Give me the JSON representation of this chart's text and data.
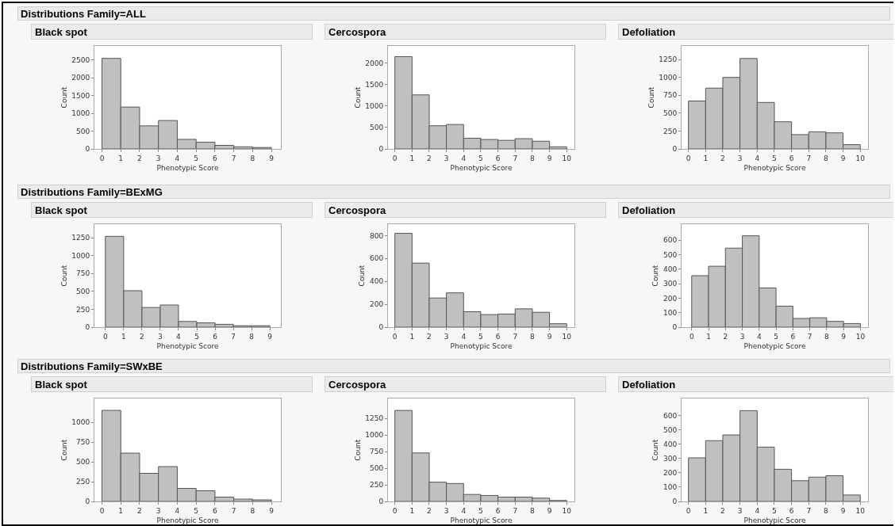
{
  "chart_data": [
    {
      "type": "other",
      "title": "Distributions Family=ALL"
    },
    {
      "type": "histogram",
      "title": "Black spot",
      "xlabel": "Phenotypic Score",
      "ylabel": "Count",
      "color": "#c0c0c0",
      "grid": false,
      "bins": [
        0,
        1,
        2,
        3,
        4,
        5,
        6,
        7,
        8,
        9
      ],
      "values": [
        2550,
        1180,
        650,
        800,
        270,
        190,
        100,
        60,
        40
      ],
      "xlim": [
        -0.4,
        9.5
      ],
      "xticks": [
        0,
        1,
        2,
        3,
        4,
        5,
        6,
        7,
        8,
        9
      ],
      "ylim": [
        0,
        2900
      ],
      "yticks": [
        0,
        500,
        1000,
        1500,
        2000,
        2500
      ]
    },
    {
      "type": "histogram",
      "title": "Cercospora",
      "xlabel": "Phenotypic Score",
      "ylabel": "Count",
      "color": "#c0c0c0",
      "grid": false,
      "bins": [
        0,
        1,
        2,
        3,
        4,
        5,
        6,
        7,
        8,
        9,
        10
      ],
      "values": [
        2150,
        1260,
        540,
        570,
        250,
        220,
        200,
        240,
        180,
        50
      ],
      "xlim": [
        -0.4,
        10.45
      ],
      "xticks": [
        0,
        1,
        2,
        3,
        4,
        5,
        6,
        7,
        8,
        9,
        10
      ],
      "ylim": [
        0,
        2400
      ],
      "yticks": [
        0,
        500,
        1000,
        1500,
        2000
      ]
    },
    {
      "type": "histogram",
      "title": "Defoliation",
      "xlabel": "Phenotypic Score",
      "ylabel": "Count",
      "color": "#c0c0c0",
      "grid": false,
      "bins": [
        0,
        1,
        2,
        3,
        4,
        5,
        6,
        7,
        8,
        9,
        10
      ],
      "values": [
        670,
        850,
        1000,
        1265,
        650,
        380,
        200,
        240,
        225,
        60
      ],
      "xlim": [
        -0.4,
        10.45
      ],
      "xticks": [
        0,
        1,
        2,
        3,
        4,
        5,
        6,
        7,
        8,
        9,
        10
      ],
      "ylim": [
        0,
        1440
      ],
      "yticks": [
        0,
        250,
        500,
        750,
        1000,
        1250
      ]
    },
    {
      "type": "other",
      "title": "Distributions Family=BExMG"
    },
    {
      "type": "histogram",
      "title": "Black spot",
      "xlabel": "Phenotypic Score",
      "ylabel": "Count",
      "color": "#c0c0c0",
      "grid": false,
      "bins": [
        0,
        1,
        2,
        3,
        4,
        5,
        6,
        7,
        8,
        9
      ],
      "values": [
        1270,
        510,
        275,
        310,
        80,
        60,
        40,
        20,
        20
      ],
      "xlim": [
        -0.6,
        9.6
      ],
      "xticks": [
        0,
        1,
        2,
        3,
        4,
        5,
        6,
        7,
        8,
        9
      ],
      "ylim": [
        0,
        1440
      ],
      "yticks": [
        0,
        250,
        500,
        750,
        1000,
        1250
      ]
    },
    {
      "type": "histogram",
      "title": "Cercospora",
      "xlabel": "Phenotypic Score",
      "ylabel": "Count",
      "color": "#c0c0c0",
      "grid": false,
      "bins": [
        0,
        1,
        2,
        3,
        4,
        5,
        6,
        7,
        8,
        9,
        10
      ],
      "values": [
        820,
        560,
        255,
        300,
        135,
        110,
        115,
        160,
        130,
        30
      ],
      "xlim": [
        -0.4,
        10.45
      ],
      "xticks": [
        0,
        1,
        2,
        3,
        4,
        5,
        6,
        7,
        8,
        9,
        10
      ],
      "ylim": [
        0,
        900
      ],
      "yticks": [
        0,
        200,
        400,
        600,
        800
      ]
    },
    {
      "type": "histogram",
      "title": "Defoliation",
      "xlabel": "Phenotypic Score",
      "ylabel": "Count",
      "color": "#c0c0c0",
      "grid": false,
      "bins": [
        0,
        1,
        2,
        3,
        4,
        5,
        6,
        7,
        8,
        9,
        10
      ],
      "values": [
        355,
        420,
        545,
        630,
        270,
        145,
        60,
        65,
        40,
        25
      ],
      "xlim": [
        -0.6,
        10.45
      ],
      "xticks": [
        0,
        1,
        2,
        3,
        4,
        5,
        6,
        7,
        8,
        9,
        10
      ],
      "ylim": [
        0,
        710
      ],
      "yticks": [
        0,
        100,
        200,
        300,
        400,
        500,
        600
      ]
    },
    {
      "type": "other",
      "title": "Distributions Family=SWxBE"
    },
    {
      "type": "histogram",
      "title": "Black spot",
      "xlabel": "Phenotypic Score",
      "ylabel": "Count",
      "color": "#c0c0c0",
      "grid": false,
      "bins": [
        0,
        1,
        2,
        3,
        4,
        5,
        6,
        7,
        8,
        9
      ],
      "values": [
        1150,
        610,
        355,
        440,
        165,
        135,
        55,
        30,
        20
      ],
      "xlim": [
        -0.4,
        9.5
      ],
      "xticks": [
        0,
        1,
        2,
        3,
        4,
        5,
        6,
        7,
        8,
        9
      ],
      "ylim": [
        0,
        1300
      ],
      "yticks": [
        0,
        250,
        500,
        750,
        1000
      ]
    },
    {
      "type": "histogram",
      "title": "Cercospora",
      "xlabel": "Phenotypic Score",
      "ylabel": "Count",
      "color": "#c0c0c0",
      "grid": false,
      "bins": [
        0,
        1,
        2,
        3,
        4,
        5,
        6,
        7,
        8,
        9,
        10
      ],
      "values": [
        1370,
        730,
        290,
        270,
        105,
        90,
        65,
        65,
        50,
        15
      ],
      "xlim": [
        -0.4,
        10.45
      ],
      "xticks": [
        0,
        1,
        2,
        3,
        4,
        5,
        6,
        7,
        8,
        9,
        10
      ],
      "ylim": [
        0,
        1550
      ],
      "yticks": [
        0,
        250,
        500,
        750,
        1000,
        1250
      ]
    },
    {
      "type": "histogram",
      "title": "Defoliation",
      "xlabel": "Phenotypic Score",
      "ylabel": "Count",
      "color": "#c0c0c0",
      "grid": false,
      "bins": [
        0,
        1,
        2,
        3,
        4,
        5,
        6,
        7,
        8,
        9,
        10
      ],
      "values": [
        305,
        425,
        465,
        635,
        380,
        225,
        145,
        170,
        180,
        45
      ],
      "xlim": [
        -0.4,
        10.45
      ],
      "xticks": [
        0,
        1,
        2,
        3,
        4,
        5,
        6,
        7,
        8,
        9,
        10
      ],
      "ylim": [
        0,
        720
      ],
      "yticks": [
        0,
        100,
        200,
        300,
        400,
        500,
        600
      ]
    }
  ]
}
